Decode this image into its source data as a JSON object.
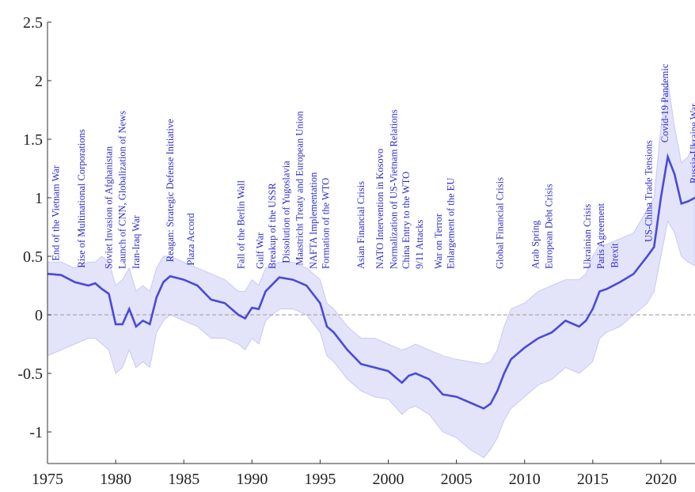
{
  "chart_data": {
    "type": "line",
    "x": [
      1975,
      1976,
      1977,
      1978,
      1978.5,
      1979,
      1979.5,
      1980,
      1980.5,
      1981,
      1981.5,
      1982,
      1982.5,
      1983,
      1983.5,
      1984,
      1985,
      1986,
      1987,
      1988,
      1989,
      1989.5,
      1990,
      1990.5,
      1991,
      1992,
      1993,
      1994,
      1995,
      1995.5,
      1996,
      1997,
      1998,
      1999,
      2000,
      2001,
      2001.5,
      2002,
      2003,
      2004,
      2005,
      2006,
      2007,
      2007.5,
      2008,
      2008.5,
      2009,
      2010,
      2011,
      2012,
      2013,
      2014,
      2014.5,
      2015,
      2015.5,
      2016,
      2017,
      2018,
      2019,
      2019.5,
      2020,
      2020.5,
      2021,
      2021.5,
      2022,
      2022.5
    ],
    "series": [
      {
        "color": "#4a4ad8",
        "values": [
          0.35,
          0.34,
          0.28,
          0.25,
          0.27,
          0.22,
          0.18,
          -0.08,
          -0.08,
          0.05,
          -0.1,
          -0.05,
          -0.08,
          0.15,
          0.28,
          0.33,
          0.3,
          0.25,
          0.13,
          0.1,
          0.0,
          -0.03,
          0.06,
          0.05,
          0.2,
          0.32,
          0.3,
          0.25,
          0.1,
          -0.1,
          -0.15,
          -0.3,
          -0.42,
          -0.45,
          -0.48,
          -0.58,
          -0.52,
          -0.5,
          -0.55,
          -0.68,
          -0.7,
          -0.75,
          -0.8,
          -0.76,
          -0.65,
          -0.5,
          -0.38,
          -0.28,
          -0.2,
          -0.15,
          -0.05,
          -0.1,
          -0.05,
          0.05,
          0.2,
          0.22,
          0.28,
          0.35,
          0.5,
          0.58,
          1.0,
          1.35,
          1.2,
          0.95,
          0.97,
          1.0
        ]
      }
    ],
    "band": {
      "color": "#e3e3fa",
      "lower": [
        -0.35,
        -0.3,
        -0.25,
        -0.2,
        -0.2,
        -0.25,
        -0.3,
        -0.5,
        -0.45,
        -0.3,
        -0.45,
        -0.4,
        -0.45,
        -0.15,
        -0.05,
        0.0,
        -0.05,
        -0.1,
        -0.2,
        -0.2,
        -0.25,
        -0.3,
        -0.2,
        -0.25,
        -0.05,
        0.05,
        0.05,
        0.0,
        -0.15,
        -0.35,
        -0.4,
        -0.55,
        -0.65,
        -0.7,
        -0.72,
        -0.85,
        -0.8,
        -0.78,
        -0.85,
        -1.0,
        -1.05,
        -1.15,
        -1.22,
        -1.15,
        -1.05,
        -0.9,
        -0.8,
        -0.7,
        -0.6,
        -0.55,
        -0.45,
        -0.5,
        -0.45,
        -0.4,
        -0.2,
        -0.15,
        -0.1,
        0.0,
        0.1,
        0.2,
        0.5,
        0.8,
        0.7,
        0.5,
        0.45,
        0.42
      ],
      "upper": [
        0.45,
        0.45,
        0.4,
        0.45,
        0.45,
        0.5,
        0.45,
        0.25,
        0.3,
        0.4,
        0.2,
        0.25,
        0.2,
        0.4,
        0.5,
        0.5,
        0.45,
        0.4,
        0.35,
        0.3,
        0.2,
        0.2,
        0.3,
        0.25,
        0.4,
        0.45,
        0.45,
        0.4,
        0.3,
        0.1,
        0.05,
        -0.1,
        -0.2,
        -0.2,
        -0.25,
        -0.3,
        -0.28,
        -0.25,
        -0.3,
        -0.35,
        -0.38,
        -0.4,
        -0.42,
        -0.4,
        -0.3,
        -0.1,
        0.05,
        0.1,
        0.2,
        0.25,
        0.3,
        0.3,
        0.35,
        0.5,
        0.6,
        0.6,
        0.65,
        0.7,
        0.9,
        1.0,
        1.6,
        2.0,
        1.6,
        1.3,
        1.35,
        1.5
      ]
    },
    "hline": 0,
    "annotations": [
      {
        "text": "End of the Vietnam War",
        "x": 1975.6
      },
      {
        "text": "Rise of Multinational Corporations",
        "x": 1977.5
      },
      {
        "text": "Soviet Invasion of Afghanistan",
        "x": 1979.5
      },
      {
        "text": "Launch of CNN, Globalization of News",
        "x": 1980.5
      },
      {
        "text": "Iran-Iraq War",
        "x": 1981.5
      },
      {
        "text": "Reagan: Strategic Defense Initiative",
        "x": 1984
      },
      {
        "text": "Plaza Accord",
        "x": 1985.5
      },
      {
        "text": "Fall of the Berlin Wall",
        "x": 1989.2
      },
      {
        "text": "Gulf War",
        "x": 1990.6
      },
      {
        "text": "Breakup of the USSR",
        "x": 1991.5
      },
      {
        "text": "Dissolution of Yugoslavia",
        "x": 1992.5
      },
      {
        "text": "Maastricht Treaty and European Union",
        "x": 1993.5
      },
      {
        "text": "NAFTA Implementation",
        "x": 1994.5
      },
      {
        "text": "Formation of the WTO",
        "x": 1995.4
      },
      {
        "text": "Asian Financial Crisis",
        "x": 1998
      },
      {
        "text": "NATO Intervention in Kosovo",
        "x": 1999.4
      },
      {
        "text": "Normalization of US-Vietnam Relations",
        "x": 2000.4
      },
      {
        "text": "China Entry to the WTO",
        "x": 2001.3
      },
      {
        "text": "9/11 Attacks",
        "x": 2002.3
      },
      {
        "text": "War on Terror",
        "x": 2003.7
      },
      {
        "text": "Enlargement of the EU",
        "x": 2004.6
      },
      {
        "text": "Global Financial Crisis",
        "x": 2008.2
      },
      {
        "text": "Arab Spring",
        "x": 2010.8
      },
      {
        "text": "European Debt Crisis",
        "x": 2011.8
      },
      {
        "text": "Ukrainian Crisis",
        "x": 2014.6
      },
      {
        "text": "Paris Agreement",
        "x": 2015.6
      },
      {
        "text": "Brexit",
        "x": 2016.6
      },
      {
        "text": "US-China Trade Tensions",
        "x": 2019.1
      },
      {
        "text": "Covid-19 Pandemic",
        "x": 2020.3
      },
      {
        "text": "Russia-Ukraine War",
        "x": 2022.4
      }
    ],
    "xlim": [
      1975,
      2022.5
    ],
    "ylim": [
      -1.27,
      2.5
    ],
    "xticks": [
      1975,
      1980,
      1985,
      1990,
      1995,
      2000,
      2005,
      2010,
      2015,
      2020
    ],
    "yticks": [
      -1,
      -0.5,
      0,
      0.5,
      1,
      1.5,
      2,
      2.5
    ]
  }
}
